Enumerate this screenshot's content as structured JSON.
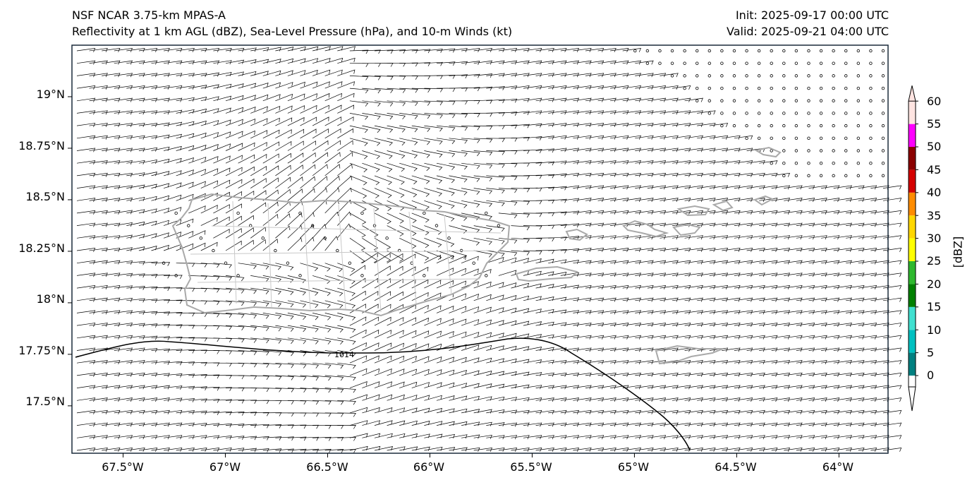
{
  "header": {
    "title_left_1": "NSF NCAR 3.75-km MPAS-A",
    "title_left_2": "Reflectivity at 1 km AGL (dBZ), Sea-Level Pressure (hPa), and 10-m Winds (kt)",
    "title_right_1": "Init: 2025-09-17 00:00 UTC",
    "title_right_2": "Valid: 2025-09-21 04:00 UTC"
  },
  "axes": {
    "lon_labels": [
      "67.5°W",
      "67°W",
      "66.5°W",
      "66°W",
      "65.5°W",
      "65°W",
      "64.5°W",
      "64°W"
    ],
    "lon_values": [
      -67.5,
      -67.0,
      -66.5,
      -66.0,
      -65.5,
      -65.0,
      -64.5,
      -64.0
    ],
    "lat_labels": [
      "19°N",
      "18.75°N",
      "18.5°N",
      "18.25°N",
      "18°N",
      "17.75°N",
      "17.5°N"
    ],
    "lat_values": [
      19.0,
      18.75,
      18.5,
      18.25,
      18.0,
      17.75,
      17.5
    ],
    "lon_range": [
      -67.75,
      -63.76
    ],
    "lat_range": [
      17.27,
      19.25
    ]
  },
  "isobar": {
    "label": "1014",
    "level_hpa": 1014
  },
  "colorbar": {
    "title": "[dBZ]",
    "tick_labels": [
      "0",
      "5",
      "10",
      "15",
      "20",
      "25",
      "30",
      "35",
      "40",
      "45",
      "50",
      "55",
      "60"
    ],
    "levels": [
      0,
      5,
      10,
      15,
      20,
      25,
      30,
      35,
      40,
      45,
      50,
      55,
      60
    ],
    "colors": [
      "#008080",
      "#00c0c0",
      "#40e0d0",
      "#008000",
      "#2eb82e",
      "#ffff00",
      "#ffd700",
      "#ff8c00",
      "#d40000",
      "#8b0000",
      "#ff00ff",
      "#ffe4e1"
    ]
  },
  "colors": {
    "coast": "#a9a9a9",
    "barb": "#000000",
    "frame": "#1a2a3a"
  }
}
